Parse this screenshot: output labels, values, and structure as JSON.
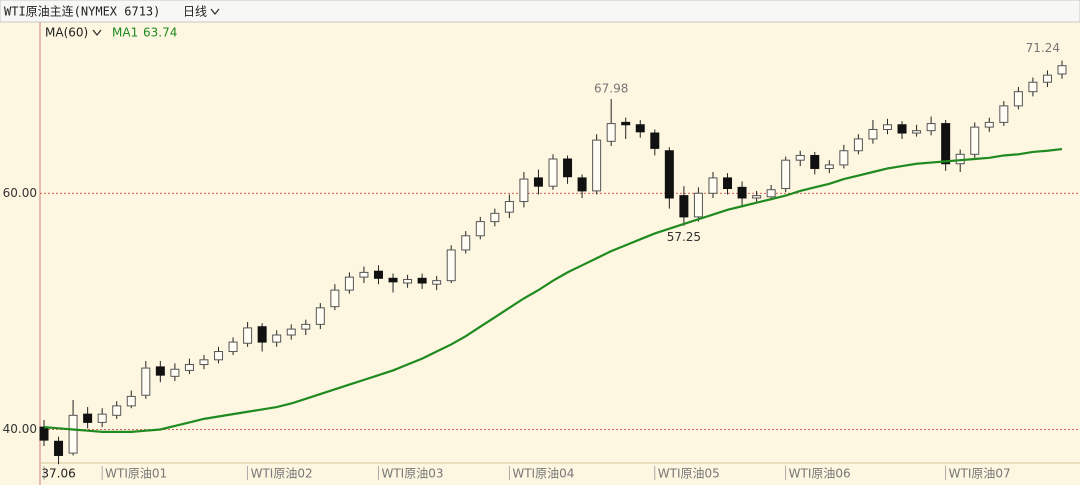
{
  "chart_data": {
    "type": "candlestick",
    "title": "WTI原油主连(NYMEX 6713)",
    "period": "日线",
    "categories": [
      "",
      null,
      null,
      null,
      "WTI原油01",
      null,
      null,
      null,
      null,
      null,
      null,
      null,
      null,
      null,
      "WTI原油02",
      null,
      null,
      null,
      null,
      null,
      null,
      null,
      null,
      "WTI原油03",
      null,
      null,
      null,
      null,
      null,
      null,
      null,
      null,
      "WTI原油04",
      null,
      null,
      null,
      null,
      null,
      null,
      null,
      null,
      null,
      "WTI原油05",
      null,
      null,
      null,
      null,
      null,
      null,
      null,
      null,
      "WTI原油06",
      null,
      null,
      null,
      null,
      null,
      null,
      null,
      null,
      null,
      null,
      "WTI原油07",
      null,
      null,
      null,
      null,
      null,
      null,
      null,
      null
    ],
    "open": [
      40.2,
      39.0,
      38.0,
      41.3,
      40.6,
      41.2,
      42.0,
      42.9,
      45.3,
      44.5,
      45.0,
      45.5,
      45.9,
      46.6,
      47.3,
      48.7,
      47.4,
      48.0,
      48.5,
      48.9,
      50.4,
      51.8,
      52.9,
      53.4,
      52.8,
      52.4,
      52.8,
      52.3,
      52.6,
      55.2,
      56.4,
      57.6,
      58.4,
      59.3,
      61.3,
      60.6,
      62.9,
      61.3,
      60.2,
      64.4,
      66.0,
      65.8,
      65.1,
      63.6,
      59.8,
      58.0,
      60.0,
      61.3,
      60.5,
      59.6,
      59.7,
      60.4,
      62.8,
      63.2,
      62.1,
      62.4,
      63.6,
      64.6,
      65.4,
      65.8,
      65.1,
      65.3,
      65.9,
      62.5,
      63.3,
      65.6,
      66.0,
      67.4,
      68.6,
      69.4,
      70.1
    ],
    "high": [
      40.8,
      39.4,
      42.5,
      41.9,
      41.8,
      42.4,
      43.3,
      45.8,
      45.8,
      45.6,
      46.0,
      46.3,
      47.0,
      47.8,
      49.1,
      49.0,
      48.4,
      48.9,
      49.3,
      50.7,
      52.3,
      53.3,
      53.8,
      53.9,
      53.2,
      53.1,
      53.2,
      53.0,
      55.6,
      56.8,
      58.0,
      58.7,
      59.9,
      61.8,
      62.0,
      63.3,
      63.2,
      61.6,
      65.0,
      67.98,
      66.4,
      66.2,
      65.4,
      63.9,
      60.6,
      60.5,
      61.8,
      61.7,
      61.0,
      60.2,
      60.7,
      63.1,
      63.6,
      63.5,
      62.8,
      64.1,
      65.0,
      66.2,
      66.3,
      66.1,
      65.8,
      66.5,
      66.2,
      63.7,
      66.0,
      66.4,
      67.8,
      69.0,
      69.8,
      70.4,
      71.24
    ],
    "low": [
      38.6,
      37.06,
      37.8,
      40.1,
      40.2,
      40.9,
      41.8,
      42.6,
      44.0,
      44.1,
      44.7,
      45.1,
      45.6,
      46.3,
      47.0,
      46.6,
      47.0,
      47.6,
      48.0,
      48.5,
      50.1,
      51.5,
      52.4,
      52.3,
      51.6,
      52.0,
      51.9,
      51.8,
      52.4,
      54.9,
      56.1,
      57.2,
      57.9,
      58.8,
      59.9,
      60.3,
      60.8,
      59.6,
      59.9,
      64.0,
      64.6,
      64.7,
      63.2,
      58.7,
      57.25,
      57.6,
      59.6,
      59.9,
      58.8,
      59.2,
      59.4,
      60.1,
      62.3,
      61.6,
      61.7,
      62.1,
      63.3,
      64.2,
      65.0,
      64.6,
      64.8,
      64.9,
      61.9,
      61.8,
      63.0,
      65.2,
      65.7,
      67.1,
      68.2,
      69.0,
      69.7
    ],
    "close": [
      39.1,
      37.8,
      41.2,
      40.6,
      41.3,
      42.0,
      42.8,
      45.2,
      44.6,
      45.1,
      45.5,
      45.9,
      46.6,
      47.4,
      48.6,
      47.4,
      48.0,
      48.5,
      48.9,
      50.3,
      51.8,
      52.9,
      53.3,
      52.8,
      52.5,
      52.7,
      52.4,
      52.6,
      55.2,
      56.4,
      57.6,
      58.3,
      59.3,
      61.2,
      60.6,
      62.9,
      61.4,
      60.2,
      64.5,
      65.9,
      65.8,
      65.2,
      63.8,
      59.6,
      58.0,
      60.0,
      61.3,
      60.4,
      59.6,
      59.8,
      60.3,
      62.8,
      63.2,
      62.1,
      62.4,
      63.6,
      64.6,
      65.4,
      65.8,
      65.1,
      65.3,
      65.9,
      62.5,
      63.3,
      65.6,
      66.0,
      67.4,
      68.6,
      69.4,
      70.0,
      70.8
    ],
    "up_color": "#fffdf4",
    "down_color": "#111111",
    "ma": {
      "label": "MA(60)",
      "name": "MA1",
      "color": "#1f8a1f",
      "values": [
        40.2,
        40.1,
        40.0,
        39.9,
        39.8,
        39.8,
        39.8,
        39.9,
        40.0,
        40.3,
        40.6,
        40.9,
        41.1,
        41.3,
        41.5,
        41.7,
        41.9,
        42.2,
        42.6,
        43.0,
        43.4,
        43.8,
        44.2,
        44.6,
        45.0,
        45.5,
        46.0,
        46.6,
        47.2,
        47.9,
        48.7,
        49.5,
        50.3,
        51.1,
        51.8,
        52.6,
        53.3,
        53.9,
        54.5,
        55.1,
        55.6,
        56.1,
        56.6,
        57.0,
        57.4,
        57.8,
        58.2,
        58.6,
        58.9,
        59.2,
        59.5,
        59.8,
        60.2,
        60.5,
        60.8,
        61.2,
        61.5,
        61.8,
        62.1,
        62.3,
        62.5,
        62.6,
        62.7,
        62.8,
        62.9,
        63.0,
        63.2,
        63.3,
        63.5,
        63.6,
        63.74
      ]
    },
    "ylim": [
      35.3,
      74.5
    ],
    "yticks": [
      {
        "value": 40,
        "label": "40.00"
      },
      {
        "value": 60,
        "label": "60.00"
      }
    ],
    "grid": true,
    "grid_color": "#cc3333"
  }
}
